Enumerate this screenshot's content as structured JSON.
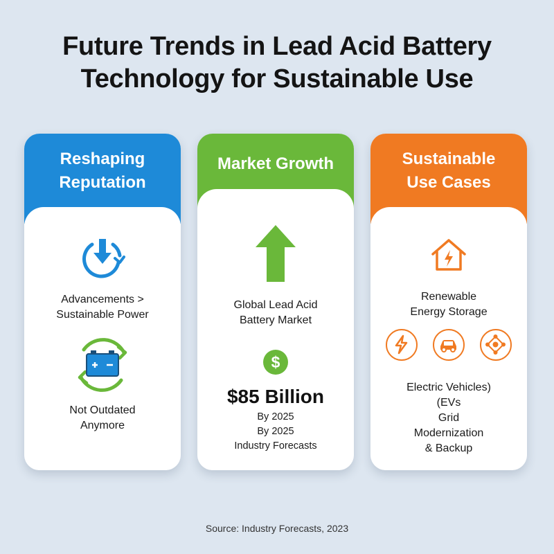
{
  "title": {
    "line1": "Future Trends in Lead Acid Battery",
    "line2": "Technology for Sustainable Use"
  },
  "colors": {
    "card1_header": "#1e8ad8",
    "card2_header": "#6ab83a",
    "card3_header": "#f07a22",
    "background": "#dde6f0"
  },
  "cards": [
    {
      "header": {
        "line1": "Reshaping",
        "line2": "Reputation"
      },
      "items": [
        {
          "icon": "refresh-download-icon",
          "line1": "Advancements >",
          "line2": "Sustainable Power"
        },
        {
          "icon": "battery-recycle-icon",
          "line1": "Not Outdated",
          "line2": "Anymore"
        }
      ]
    },
    {
      "header": {
        "line1": "Market Growth"
      },
      "arrow_icon": "up-arrow-icon",
      "market": {
        "line1": "Global Lead Acid",
        "line2": "Battery Market"
      },
      "dollar_icon": "dollar-icon",
      "value": "$85 Billion",
      "year1": "By 2025",
      "year2": "By 2025",
      "note": "Industry Forecasts"
    },
    {
      "header": {
        "line1": "Sustainable",
        "line2": "Use Cases"
      },
      "house_icon": "house-lightning-icon",
      "renewable": {
        "line1": "Renewable",
        "line2": "Energy Storage"
      },
      "small_icons": [
        "lightning-icon",
        "car-icon",
        "network-icon"
      ],
      "ev": {
        "line1": "Electric Vehicles)",
        "line2": "(EVs"
      },
      "grid": {
        "line1": "Grid",
        "line2": "Modernization",
        "line3": "& Backup"
      }
    }
  ],
  "source": "Source: Industry Forecasts, 2023"
}
